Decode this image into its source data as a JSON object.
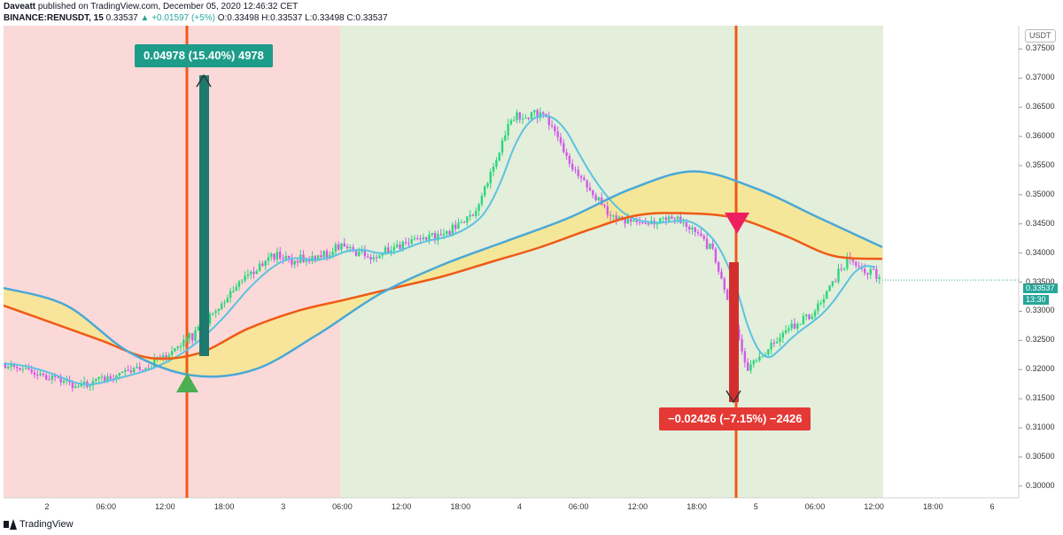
{
  "header": {
    "author": "Daveatt",
    "published_text": "published on TradingView.com, December 05, 2020 12:46:32 CET",
    "symbol": "BINANCE:RENUSDT, 15",
    "last": "0.33537",
    "change": "▲ +0.01597 (+5%)",
    "ohlc": "O:0.33498 H:0.33537 L:0.33498 C:0.33537"
  },
  "currency": "USDT",
  "price_tag": "0.33537",
  "countdown_tag": "13:30",
  "measure_up": {
    "label": "0.04978 (15.40%) 4978"
  },
  "measure_down": {
    "label": "−0.02426 (−7.15%) −2426"
  },
  "footer": {
    "brand": "TradingView"
  },
  "colors": {
    "bg_red_zone": "#fbd9d9",
    "bg_green_zone": "#e3eedb",
    "vline": "#ef5a16",
    "cloud_fill": "#f7e58e",
    "slow_ma": "#ef5a16",
    "wave": "#4aa8d6",
    "fast_ma": "#5bc3e0",
    "candle_up": "#2bd67b",
    "candle_down": "#d15ae8",
    "buy_marker": "#4caf50",
    "sell_marker": "#ee1f61"
  },
  "y_axis_labels": [
    "0.37500",
    "0.37000",
    "0.36500",
    "0.36000",
    "0.35500",
    "0.35000",
    "0.34500",
    "0.34000",
    "0.33500",
    "0.33000",
    "0.32500",
    "0.32000",
    "0.31500",
    "0.31000",
    "0.30500",
    "0.30000"
  ],
  "x_axis_labels": [
    "2",
    "06:00",
    "12:00",
    "18:00",
    "3",
    "06:00",
    "12:00",
    "18:00",
    "4",
    "06:00",
    "12:00",
    "18:00",
    "5",
    "06:00",
    "12:00",
    "18:00",
    "6"
  ],
  "chart_data": {
    "type": "line",
    "title": "",
    "y_range": [
      0.298,
      0.379
    ],
    "x_labels": [
      "2",
      "06:00",
      "12:00",
      "18:00",
      "3",
      "06:00",
      "12:00",
      "18:00",
      "4",
      "06:00",
      "12:00",
      "18:00",
      "5",
      "06:00",
      "12:00",
      "18:00",
      "6"
    ],
    "series": [
      {
        "values": [
          0.321,
          0.3195,
          0.317,
          0.3185,
          0.32,
          0.323,
          0.328,
          0.335,
          0.3395,
          0.3385,
          0.341,
          0.3395,
          0.342,
          0.343,
          0.347,
          0.363,
          0.364,
          0.353,
          0.346,
          0.345,
          0.346,
          0.34,
          0.32,
          0.326,
          0.33,
          0.339,
          0.3354
        ]
      },
      {
        "values": [
          0.331,
          0.328,
          0.325,
          0.322,
          0.3228,
          0.327,
          0.33,
          0.332,
          0.334,
          0.336,
          0.3385,
          0.341,
          0.344,
          0.3465,
          0.3468,
          0.346,
          0.343,
          0.3395,
          0.339
        ]
      },
      {
        "values": [
          0.334,
          0.331,
          0.323,
          0.319,
          0.32,
          0.326,
          0.333,
          0.338,
          0.342,
          0.346,
          0.351,
          0.354,
          0.351,
          0.346,
          0.341
        ]
      }
    ]
  }
}
